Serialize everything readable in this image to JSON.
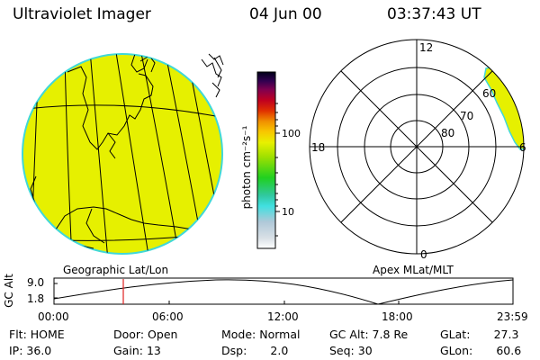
{
  "header": {
    "title": "Ultraviolet Imager",
    "date": "04 Jun 00",
    "time": "03:37:43 UT"
  },
  "colors": {
    "fill_yellow": "#e6f000",
    "edge_cyan": "#40d8d8"
  },
  "map_left": {
    "label": "Geographic Lat/Lon"
  },
  "map_right": {
    "label": "Apex MLat/MLT",
    "mlt_labels": {
      "top": "12",
      "left": "18",
      "right": "6",
      "bottom": "0"
    },
    "lat_labels": [
      "60",
      "70",
      "80"
    ]
  },
  "colorbar": {
    "unit_label": "photon cm⁻²s⁻¹",
    "ticks": [
      "100",
      "10"
    ]
  },
  "altitude_plot": {
    "ylabel": "GC Alt",
    "y_ticks": [
      "9.0",
      "1.8"
    ],
    "x_ticks": [
      "00:00",
      "06:00",
      "12:00",
      "18:00",
      "23:59"
    ]
  },
  "status": {
    "row1": [
      {
        "key": "Flt:",
        "value": "HOME"
      },
      {
        "key": "Door:",
        "value": "Open"
      },
      {
        "key": "Mode:",
        "value": "Normal"
      },
      {
        "key": "GC Alt:",
        "value": "7.8 Re"
      },
      {
        "key": "GLat:",
        "value": "27.3"
      }
    ],
    "row2": [
      {
        "key": "IP:",
        "value": "36.0"
      },
      {
        "key": "Gain:",
        "value": "13"
      },
      {
        "key": "Dsp:",
        "value": "2.0"
      },
      {
        "key": "Seq:",
        "value": "30"
      },
      {
        "key": "GLon:",
        "value": "60.6"
      }
    ]
  }
}
